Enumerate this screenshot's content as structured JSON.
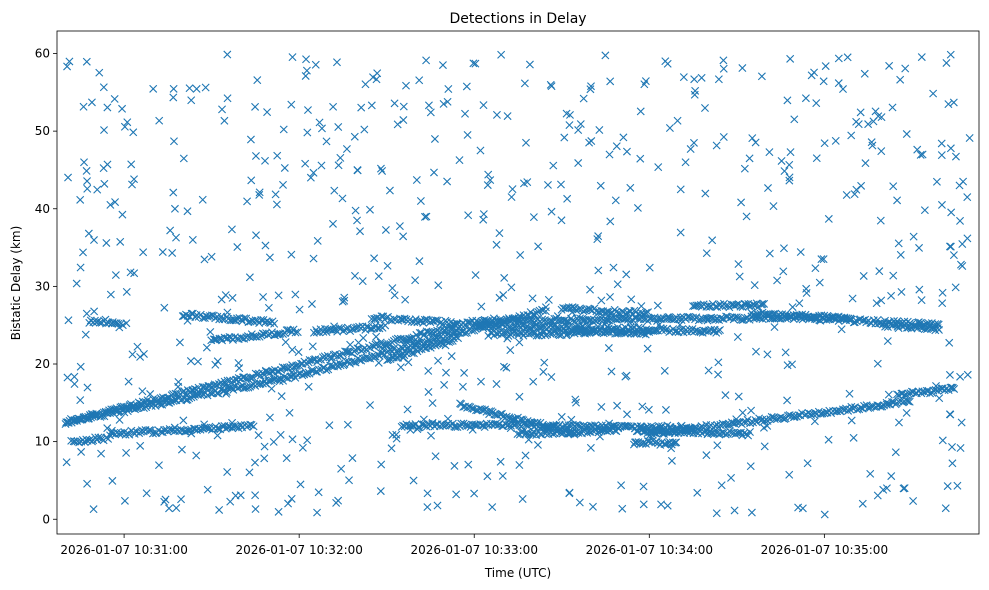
{
  "chart_data": {
    "type": "scatter",
    "title": "Detections in Delay",
    "xlabel": "Time (UTC)",
    "ylabel": "Bistatic Delay (km)",
    "marker": "x",
    "color": "#1f77b4",
    "grid": false,
    "legend": "none",
    "x_tick_labels": [
      "2026-01-07 10:31:00",
      "2026-01-07 10:32:00",
      "2026-01-07 10:33:00",
      "2026-01-07 10:34:00",
      "2026-01-07 10:35:00"
    ],
    "y_ticks": [
      0,
      10,
      20,
      30,
      40,
      50,
      60
    ],
    "xlim": [
      "2026-01-07 10:30:37",
      "2026-01-07 10:35:53"
    ],
    "ylim": [
      -1.9,
      62.9
    ],
    "series": [
      {
        "tracks": [
          {
            "x": [
              "2026-01-07 10:30:40",
              "2026-01-07 10:33:00",
              "2026-01-07 10:34:50",
              "2026-01-07 10:35:40"
            ],
            "y": [
              12.5,
              25.5,
              26.0,
              25.0
            ]
          },
          {
            "x": [
              "2026-01-07 10:30:40",
              "2026-01-07 10:32:00",
              "2026-01-07 10:33:25"
            ],
            "y": [
              12.5,
              18.5,
              27.0
            ]
          },
          {
            "x": [
              "2026-01-07 10:30:55",
              "2026-01-07 10:31:45"
            ],
            "y": [
              11.0,
              12.0
            ]
          },
          {
            "x": [
              "2026-01-07 10:31:20",
              "2026-01-07 10:31:52"
            ],
            "y": [
              26.4,
              25.3
            ]
          },
          {
            "x": [
              "2026-01-07 10:31:30",
              "2026-01-07 10:32:00"
            ],
            "y": [
              23.0,
              24.3
            ]
          },
          {
            "x": [
              "2026-01-07 10:30:42",
              "2026-01-07 10:30:55"
            ],
            "y": [
              10.0,
              10.5
            ]
          },
          {
            "x": [
              "2026-01-07 10:30:48",
              "2026-01-07 10:31:00"
            ],
            "y": [
              25.5,
              25.2
            ]
          },
          {
            "x": [
              "2026-01-07 10:32:05",
              "2026-01-07 10:32:30"
            ],
            "y": [
              24.2,
              24.8
            ]
          },
          {
            "x": [
              "2026-01-07 10:32:25",
              "2026-01-07 10:32:55"
            ],
            "y": [
              26.0,
              25.2
            ]
          },
          {
            "x": [
              "2026-01-07 10:32:30",
              "2026-01-07 10:32:55"
            ],
            "y": [
              20.5,
              23.5
            ]
          },
          {
            "x": [
              "2026-01-07 10:32:35",
              "2026-01-07 10:33:20"
            ],
            "y": [
              12.0,
              12.2
            ]
          },
          {
            "x": [
              "2026-01-07 10:33:00",
              "2026-01-07 10:34:25"
            ],
            "y": [
              25.0,
              24.2
            ]
          },
          {
            "x": [
              "2026-01-07 10:33:05",
              "2026-01-07 10:33:40"
            ],
            "y": [
              23.8,
              24.0
            ]
          },
          {
            "x": [
              "2026-01-07 10:33:15",
              "2026-01-07 10:33:50"
            ],
            "y": [
              11.0,
              11.5
            ]
          },
          {
            "x": [
              "2026-01-07 10:33:20",
              "2026-01-07 10:34:15"
            ],
            "y": [
              12.0,
              11.8
            ]
          },
          {
            "x": [
              "2026-01-07 10:33:30",
              "2026-01-07 10:34:00"
            ],
            "y": [
              27.2,
              26.5
            ]
          },
          {
            "x": [
              "2026-01-07 10:32:55",
              "2026-01-07 10:33:35"
            ],
            "y": [
              14.8,
              11.0
            ]
          },
          {
            "x": [
              "2026-01-07 10:33:35",
              "2026-01-07 10:34:00"
            ],
            "y": [
              24.3,
              24.0
            ]
          },
          {
            "x": [
              "2026-01-07 10:33:55",
              "2026-01-07 10:34:35"
            ],
            "y": [
              11.5,
              11.0
            ]
          },
          {
            "x": [
              "2026-01-07 10:34:00",
              "2026-01-07 10:35:30"
            ],
            "y": [
              11.0,
              15.2
            ]
          },
          {
            "x": [
              "2026-01-07 10:33:55",
              "2026-01-07 10:34:10"
            ],
            "y": [
              10.0,
              9.7
            ]
          },
          {
            "x": [
              "2026-01-07 10:34:15",
              "2026-01-07 10:34:40"
            ],
            "y": [
              27.5,
              27.6
            ]
          },
          {
            "x": [
              "2026-01-07 10:34:35",
              "2026-01-07 10:35:10"
            ],
            "y": [
              26.5,
              25.8
            ]
          },
          {
            "x": [
              "2026-01-07 10:35:20",
              "2026-01-07 10:35:40"
            ],
            "y": [
              25.0,
              24.5
            ]
          },
          {
            "x": [
              "2026-01-07 10:35:25",
              "2026-01-07 10:35:45"
            ],
            "y": [
              16.0,
              16.8
            ]
          }
        ],
        "scatter_range": {
          "x": [
            "2026-01-07 10:30:40",
            "2026-01-07 10:35:50"
          ],
          "y": [
            0.6,
            59.9
          ]
        }
      }
    ]
  }
}
